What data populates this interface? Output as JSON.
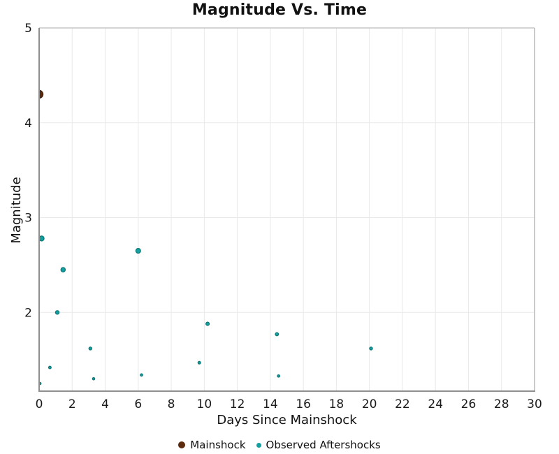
{
  "chart_data": {
    "type": "scatter",
    "title": "Magnitude Vs. Time",
    "xlabel": "Days Since Mainshock",
    "ylabel": "Magnitude",
    "xlim": [
      0,
      30
    ],
    "ylim": [
      1.17,
      5.0
    ],
    "x_ticks": [
      0,
      2,
      4,
      6,
      8,
      10,
      12,
      14,
      16,
      18,
      20,
      22,
      24,
      26,
      28,
      30
    ],
    "y_ticks": [
      2,
      3,
      4,
      5
    ],
    "grid": true,
    "legend_position": "bottom-center",
    "marker_size_rule": "radius_px = 1.3 * magnitude",
    "series": [
      {
        "name": "Mainshock",
        "color": "#5C2B0E",
        "edge_color": "#401E08",
        "legend_marker_radius": 5,
        "points": [
          {
            "day": 0.0,
            "magnitude": 4.3
          }
        ]
      },
      {
        "name": "Observed Aftershocks",
        "color": "#12A0A0",
        "edge_color": "#0B7575",
        "legend_marker_radius": 3.5,
        "points": [
          {
            "day": 0.05,
            "magnitude": 1.25
          },
          {
            "day": 0.15,
            "magnitude": 2.78
          },
          {
            "day": 0.65,
            "magnitude": 1.42
          },
          {
            "day": 1.1,
            "magnitude": 2.0
          },
          {
            "day": 1.45,
            "magnitude": 2.45
          },
          {
            "day": 3.1,
            "magnitude": 1.62
          },
          {
            "day": 3.3,
            "magnitude": 1.3
          },
          {
            "day": 6.0,
            "magnitude": 2.65
          },
          {
            "day": 6.2,
            "magnitude": 1.34
          },
          {
            "day": 9.7,
            "magnitude": 1.47
          },
          {
            "day": 10.2,
            "magnitude": 1.88
          },
          {
            "day": 14.4,
            "magnitude": 1.77
          },
          {
            "day": 14.5,
            "magnitude": 1.33
          },
          {
            "day": 20.1,
            "magnitude": 1.62
          }
        ]
      }
    ]
  }
}
